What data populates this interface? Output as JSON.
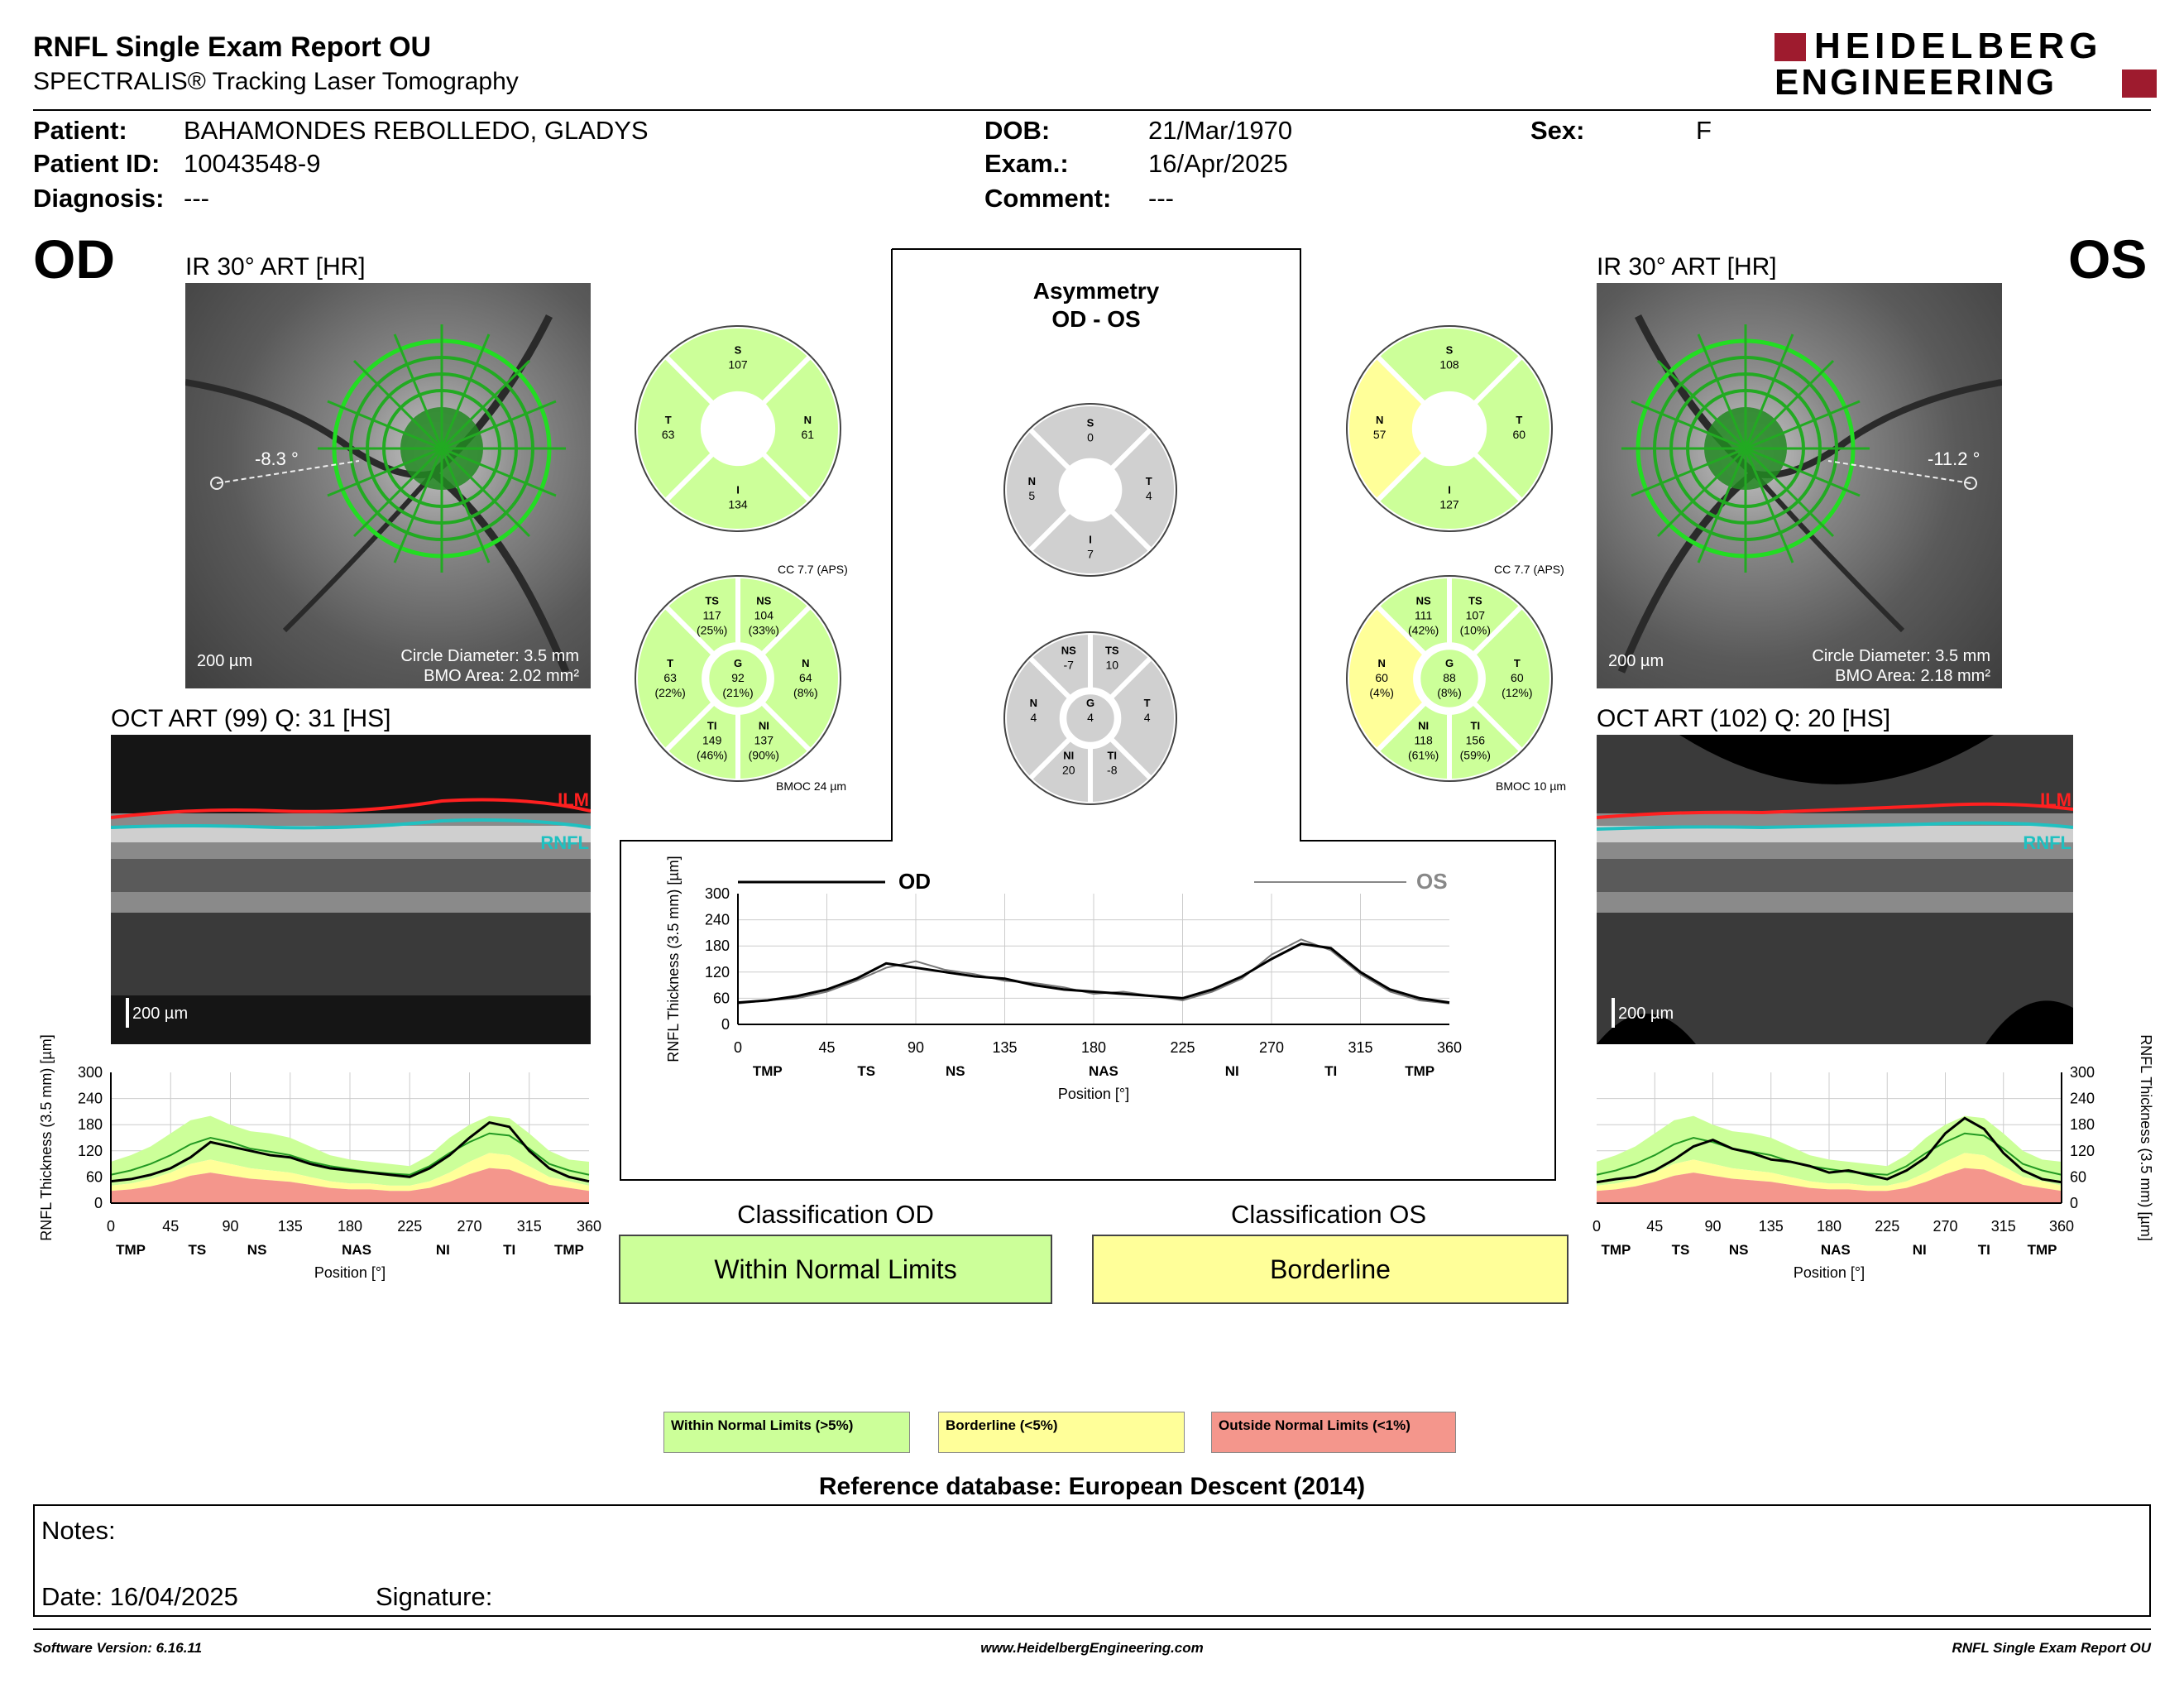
{
  "header": {
    "title": "RNFL Single Exam Report OU",
    "subtitle": "SPECTRALIS® Tracking Laser Tomography",
    "logo_line1": "HEIDELBERG",
    "logo_line2": "ENGINEERING"
  },
  "patient": {
    "patient_label": "Patient:",
    "patient_value": "BAHAMONDES REBOLLEDO, GLADYS",
    "id_label": "Patient ID:",
    "id_value": "10043548-9",
    "diagnosis_label": "Diagnosis:",
    "diagnosis_value": "---",
    "dob_label": "DOB:",
    "dob_value": "21/Mar/1970",
    "exam_label": "Exam.:",
    "exam_value": "16/Apr/2025",
    "comment_label": "Comment:",
    "comment_value": "---",
    "sex_label": "Sex:",
    "sex_value": "F"
  },
  "od": {
    "eye": "OD",
    "ir_label": "IR 30° ART [HR]",
    "angle": "-8.3 °",
    "scale": "200 µm",
    "circle_diameter": "Circle Diameter: 3.5 mm",
    "bmo_area": "BMO Area: 2.02 mm²",
    "oct_label": "OCT ART (99) Q: 31 [HS]",
    "oct_scale": "200 µm",
    "ilm": "ILM",
    "rnfl": "RNFL",
    "sectors4": {
      "S": "107",
      "T": "63",
      "N": "61",
      "I": "134"
    },
    "cc": "CC 7.7 (APS)",
    "sectors6": {
      "TS": "117",
      "TS_p": "(25%)",
      "NS": "104",
      "NS_p": "(33%)",
      "T": "63",
      "T_p": "(22%)",
      "G": "92",
      "G_p": "(21%)",
      "N": "64",
      "N_p": "(8%)",
      "TI": "149",
      "TI_p": "(46%)",
      "NI": "137",
      "NI_p": "(90%)"
    },
    "bmoc": "BMOC 24 µm",
    "classification_label": "Classification OD",
    "classification": "Within Normal Limits"
  },
  "os": {
    "eye": "OS",
    "ir_label": "IR 30° ART [HR]",
    "angle": "-11.2 °",
    "scale": "200 µm",
    "circle_diameter": "Circle Diameter: 3.5 mm",
    "bmo_area": "BMO Area: 2.18 mm²",
    "oct_label": "OCT ART (102) Q: 20 [HS]",
    "oct_scale": "200 µm",
    "ilm": "ILM",
    "rnfl": "RNFL",
    "sectors4": {
      "S": "108",
      "N": "57",
      "T": "60",
      "I": "127"
    },
    "cc": "CC 7.7 (APS)",
    "sectors6": {
      "NS": "111",
      "NS_p": "(42%)",
      "TS": "107",
      "TS_p": "(10%)",
      "N": "60",
      "N_p": "(4%)",
      "G": "88",
      "G_p": "(8%)",
      "T": "60",
      "T_p": "(12%)",
      "NI": "118",
      "NI_p": "(61%)",
      "TI": "156",
      "TI_p": "(59%)"
    },
    "bmoc": "BMOC 10 µm",
    "classification_label": "Classification OS",
    "classification": "Borderline"
  },
  "asymmetry": {
    "title1": "Asymmetry",
    "title2": "OD - OS",
    "sectors4": {
      "S": "0",
      "N": "5",
      "T": "4",
      "I": "7"
    },
    "sectors6": {
      "NS": "-7",
      "TS": "10",
      "N": "4",
      "G": "4",
      "T": "4",
      "NI": "20",
      "TI": "-8"
    }
  },
  "charts": {
    "y_label": "RNFL Thickness (3.5 mm) [µm]",
    "x_label": "Position [°]",
    "y_ticks": [
      "300",
      "240",
      "180",
      "120",
      "60",
      "0"
    ],
    "x_ticks": [
      "0",
      "45",
      "90",
      "135",
      "180",
      "225",
      "270",
      "315",
      "360"
    ],
    "sectors": [
      "TMP",
      "TS",
      "NS",
      "NAS",
      "NI",
      "TI",
      "TMP"
    ],
    "legend_od": "OD",
    "legend_os": "OS"
  },
  "chart_data": [
    {
      "type": "line",
      "xlabel": "Position [°]",
      "ylabel": "RNFL Thickness (3.5 mm) [µm]",
      "xlim": [
        0,
        360
      ],
      "ylim": [
        0,
        300
      ],
      "x": [
        0,
        15,
        30,
        45,
        60,
        75,
        90,
        105,
        120,
        135,
        150,
        165,
        180,
        195,
        210,
        225,
        240,
        255,
        270,
        285,
        300,
        315,
        330,
        345,
        360
      ],
      "series": [
        {
          "name": "OD",
          "values": [
            50,
            55,
            65,
            80,
            105,
            140,
            130,
            120,
            110,
            105,
            90,
            80,
            75,
            70,
            65,
            60,
            80,
            110,
            150,
            185,
            175,
            120,
            80,
            60,
            50
          ]
        },
        {
          "name": "OS",
          "values": [
            48,
            55,
            60,
            75,
            100,
            130,
            145,
            125,
            115,
            100,
            95,
            85,
            70,
            75,
            65,
            55,
            75,
            105,
            160,
            195,
            170,
            115,
            75,
            55,
            48
          ]
        }
      ]
    }
  ],
  "legend": {
    "wnl": "Within Normal Limits (>5%)",
    "bl": "Borderline (<5%)",
    "onl": "Outside Normal Limits (<1%)"
  },
  "reference": "Reference database: European Descent (2014)",
  "notes": {
    "notes_label": "Notes:",
    "date_label": "Date: 16/04/2025",
    "signature_label": "Signature:"
  },
  "footer": {
    "software": "Software Version: 6.16.11",
    "website": "www.HeidelbergEngineering.com",
    "report": "RNFL Single Exam Report OU"
  },
  "colors": {
    "green": "#ccff99",
    "yellow": "#ffff99",
    "red": "#f4968c",
    "gray": "#d0d0d0",
    "logo_red": "#9e1b2e"
  }
}
